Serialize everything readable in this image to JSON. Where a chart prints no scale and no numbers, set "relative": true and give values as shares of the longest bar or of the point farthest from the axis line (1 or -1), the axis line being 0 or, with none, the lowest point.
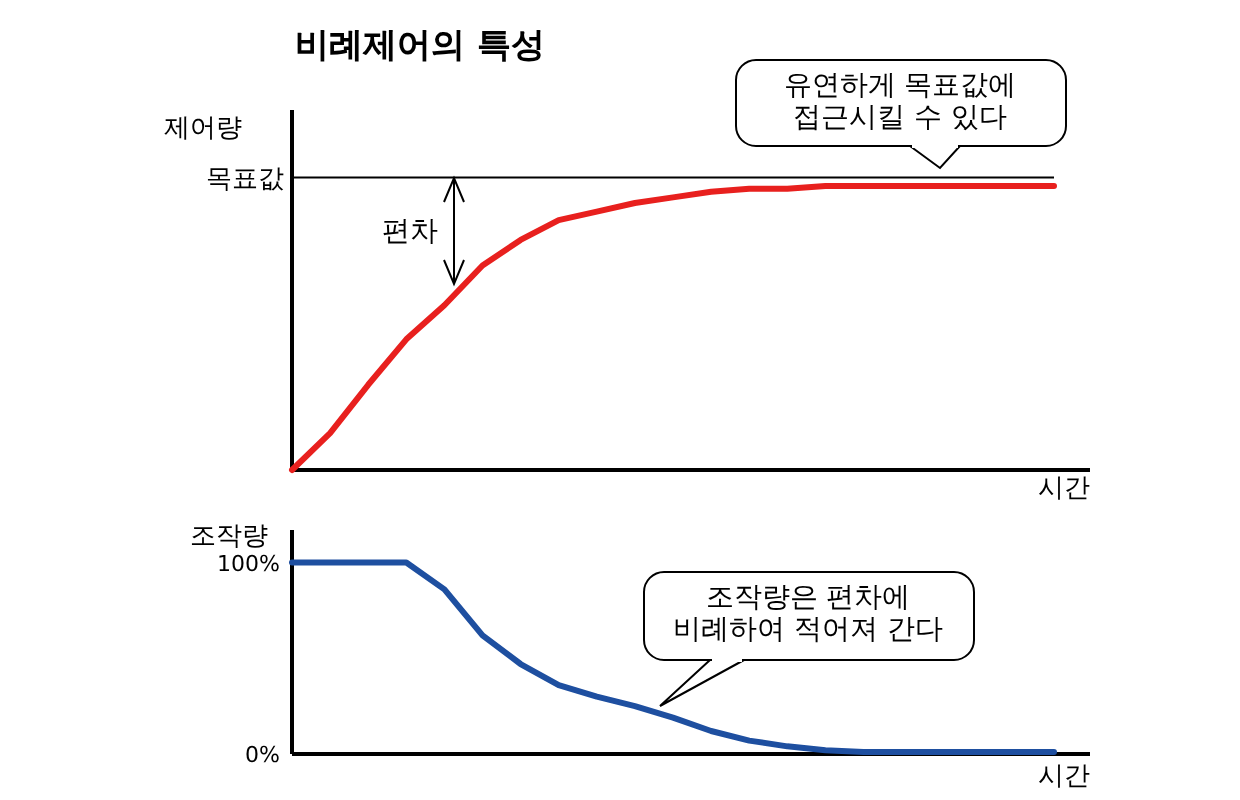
{
  "chart_data": [
    {
      "type": "line",
      "title": "비례제어의 특성",
      "ylabel": "제어량",
      "xlabel": "시간",
      "relative": true,
      "categories": [
        null,
        null,
        null,
        null,
        null,
        null,
        null,
        null,
        null,
        null,
        null,
        null,
        null,
        null,
        null,
        null,
        null,
        null,
        null,
        null,
        null
      ],
      "values": [
        0,
        0.13,
        0.3,
        0.46,
        0.58,
        0.72,
        0.81,
        0.88,
        0.91,
        0.94,
        0.96,
        0.98,
        0.99,
        0.99,
        1,
        1,
        1,
        1,
        1,
        1,
        1
      ],
      "color": "#e8201e",
      "ref_lines": [
        {
          "axis": "y",
          "value": 1.03,
          "label": "목표값",
          "color": "#000000"
        }
      ],
      "annotations": [
        "유연하게 목표값에\n접근시킬 수 있다",
        "편차"
      ]
    },
    {
      "type": "line",
      "ylabel": "조작량",
      "xlabel": "시간",
      "categories": [
        null,
        null,
        null,
        null,
        null,
        null,
        null,
        null,
        null,
        null,
        null,
        null,
        null,
        null,
        null,
        null,
        null,
        null,
        null,
        null,
        null
      ],
      "values": [
        100,
        100,
        100,
        100,
        86,
        62,
        47,
        36,
        30,
        25,
        19,
        12,
        7,
        4,
        2,
        1,
        1,
        1,
        1,
        1,
        1
      ],
      "color": "#1e4fa0",
      "ylim": [
        0,
        117
      ],
      "yticks": [
        {
          "value": 0,
          "label": "0%"
        },
        {
          "value": 100,
          "label": "100%"
        }
      ],
      "annotations": [
        "조작량은 편차에\n비례하여 적어져 간다"
      ]
    }
  ]
}
